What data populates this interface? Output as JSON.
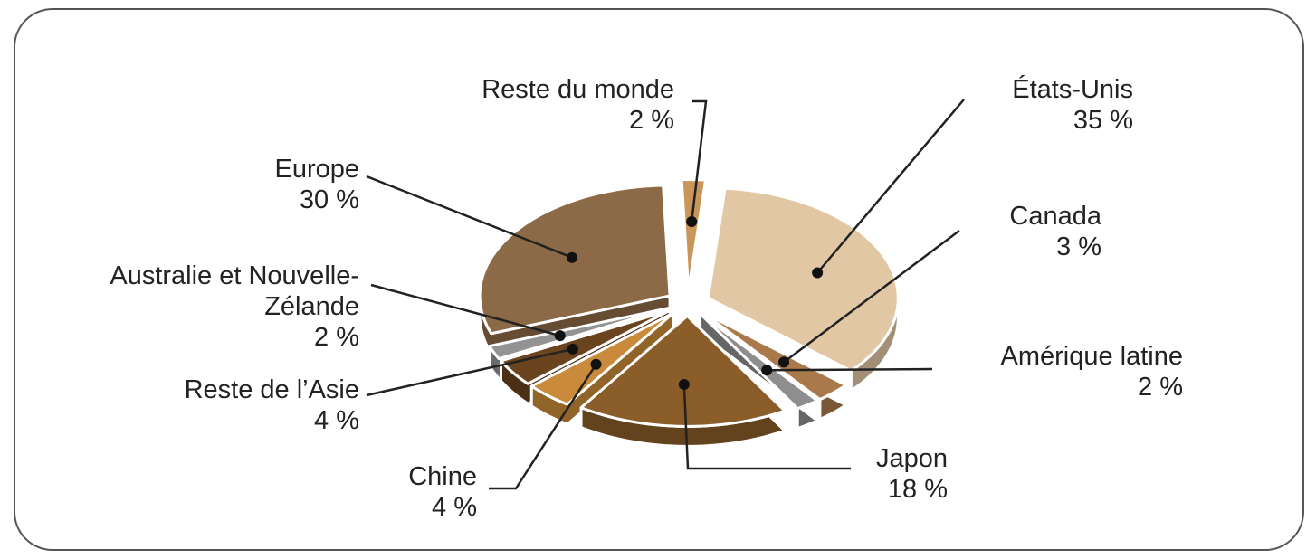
{
  "chart_data": {
    "type": "pie",
    "categories": [
      "États-Unis",
      "Canada",
      "Amérique latine",
      "Japon",
      "Chine",
      "Reste de l’Asie",
      "Australie et Nouvelle-Zélande",
      "Europe",
      "Reste du monde"
    ],
    "values": [
      35,
      3,
      2,
      18,
      4,
      4,
      2,
      30,
      2
    ],
    "value_labels": [
      "35 %",
      "3 %",
      "2 %",
      "18 %",
      "4 %",
      "4 %",
      "2 %",
      "30 %",
      "2 %"
    ],
    "colors": [
      "#e2c7a5",
      "#a9794b",
      "#8e8e8e",
      "#8a5d29",
      "#c98b3b",
      "#6a431f",
      "#939393",
      "#8c6a47",
      "#c8955a"
    ]
  }
}
